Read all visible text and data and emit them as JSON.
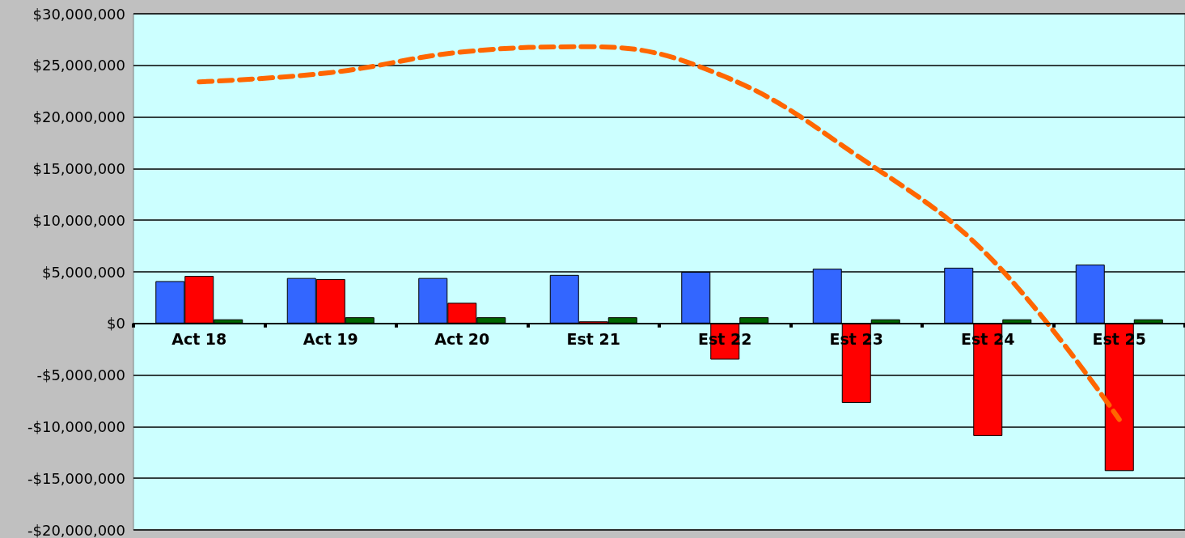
{
  "chart_data": {
    "type": "bar",
    "categories": [
      "Act 18",
      "Act 19",
      "Act 20",
      "Est 21",
      "Est 22",
      "Est 23",
      "Est 24",
      "Est 25"
    ],
    "series": [
      {
        "color": "#3366ff",
        "values": [
          4100000,
          4400000,
          4400000,
          4700000,
          5000000,
          5300000,
          5400000,
          5700000
        ]
      },
      {
        "color": "#ff0000",
        "values": [
          4600000,
          4300000,
          2000000,
          200000,
          -3500000,
          -7700000,
          -10900000,
          -14300000
        ]
      },
      {
        "color": "#006600",
        "values": [
          400000,
          600000,
          600000,
          600000,
          600000,
          400000,
          400000,
          400000
        ]
      },
      {
        "type": "line",
        "color": "#ff6600",
        "line_style": "dashed",
        "values": [
          23400000,
          24300000,
          26300000,
          26800000,
          23900000,
          16300000,
          6600000,
          -9300000
        ]
      }
    ],
    "ylim": [
      -20000000,
      30000000
    ],
    "yticks": [
      {
        "value": -20000000,
        "label": "-$20,000,000"
      },
      {
        "value": -15000000,
        "label": "-$15,000,000"
      },
      {
        "value": -10000000,
        "label": "-$10,000,000"
      },
      {
        "value": -5000000,
        "label": "-$5,000,000"
      },
      {
        "value": 0,
        "label": "$0"
      },
      {
        "value": 5000000,
        "label": "$5,000,000"
      },
      {
        "value": 10000000,
        "label": "$10,000,000"
      },
      {
        "value": 15000000,
        "label": "$15,000,000"
      },
      {
        "value": 20000000,
        "label": "$20,000,000"
      },
      {
        "value": 25000000,
        "label": "$25,000,000"
      },
      {
        "value": 30000000,
        "label": "$30,000,000"
      }
    ],
    "grid": "y",
    "marker": "none"
  }
}
